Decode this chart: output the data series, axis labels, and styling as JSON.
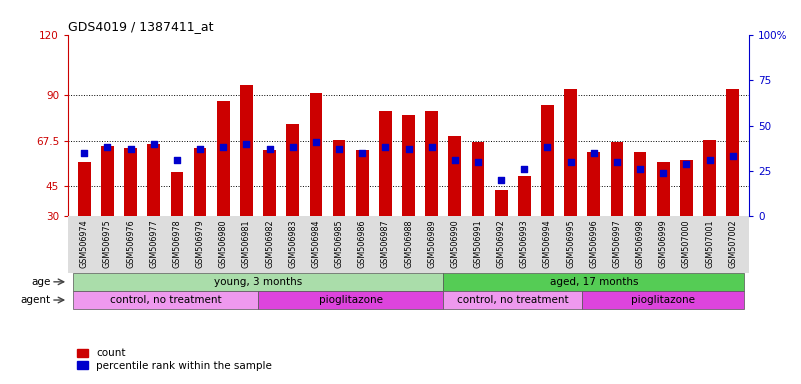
{
  "title": "GDS4019 / 1387411_at",
  "samples": [
    "GSM506974",
    "GSM506975",
    "GSM506976",
    "GSM506977",
    "GSM506978",
    "GSM506979",
    "GSM506980",
    "GSM506981",
    "GSM506982",
    "GSM506983",
    "GSM506984",
    "GSM506985",
    "GSM506986",
    "GSM506987",
    "GSM506988",
    "GSM506989",
    "GSM506990",
    "GSM506991",
    "GSM506992",
    "GSM506993",
    "GSM506994",
    "GSM506995",
    "GSM506996",
    "GSM506997",
    "GSM506998",
    "GSM506999",
    "GSM507000",
    "GSM507001",
    "GSM507002"
  ],
  "count_values": [
    57,
    65,
    64,
    66,
    52,
    64,
    87,
    95,
    63,
    76,
    91,
    68,
    63,
    82,
    80,
    82,
    70,
    67,
    43,
    50,
    85,
    93,
    62,
    67,
    62,
    57,
    58,
    68,
    93
  ],
  "percentile_values": [
    35,
    38,
    37,
    40,
    31,
    37,
    38,
    40,
    37,
    38,
    41,
    37,
    35,
    38,
    37,
    38,
    31,
    30,
    20,
    26,
    38,
    30,
    35,
    30,
    26,
    24,
    29,
    31,
    33
  ],
  "left_ylim": [
    30,
    120
  ],
  "right_ylim": [
    0,
    100
  ],
  "left_yticks": [
    30,
    45,
    67.5,
    90,
    120
  ],
  "right_yticks": [
    0,
    25,
    50,
    75,
    100
  ],
  "right_yticklabels": [
    "0",
    "25",
    "50",
    "75",
    "100%"
  ],
  "left_ytick_labels": [
    "30",
    "45",
    "67.5",
    "90",
    "120"
  ],
  "bar_color": "#cc0000",
  "dot_color": "#0000cc",
  "plot_bg": "#ffffff",
  "tick_bg_color": "#dddddd",
  "age_groups": [
    {
      "label": "young, 3 months",
      "start": 0,
      "end": 15,
      "color": "#aaddaa"
    },
    {
      "label": "aged, 17 months",
      "start": 16,
      "end": 28,
      "color": "#55cc55"
    }
  ],
  "agent_groups": [
    {
      "label": "control, no treatment",
      "start": 0,
      "end": 7,
      "color": "#ee99ee"
    },
    {
      "label": "pioglitazone",
      "start": 8,
      "end": 15,
      "color": "#dd44dd"
    },
    {
      "label": "control, no treatment",
      "start": 16,
      "end": 21,
      "color": "#ee99ee"
    },
    {
      "label": "pioglitazone",
      "start": 22,
      "end": 28,
      "color": "#dd44dd"
    }
  ],
  "left_axis_color": "#cc0000",
  "right_axis_color": "#0000cc",
  "legend_count_label": "count",
  "legend_pct_label": "percentile rank within the sample"
}
